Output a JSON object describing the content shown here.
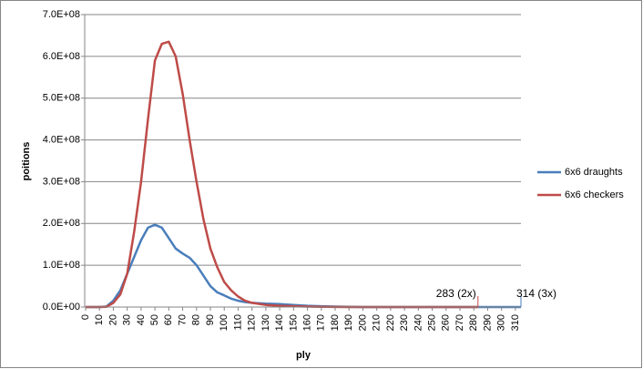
{
  "chart_data": {
    "type": "line",
    "xlabel": "ply",
    "ylabel": "poitions",
    "x": [
      0,
      5,
      10,
      15,
      20,
      25,
      30,
      35,
      40,
      45,
      50,
      55,
      60,
      65,
      70,
      75,
      80,
      85,
      90,
      95,
      100,
      105,
      110,
      115,
      120,
      130,
      140,
      150,
      160,
      170,
      180,
      190,
      200,
      283,
      314
    ],
    "series": [
      {
        "name": "6x6 draughts",
        "color": "#4a7ebb",
        "values": [
          0,
          0,
          0,
          1000000,
          15000000,
          40000000,
          80000000,
          120000000,
          160000000,
          190000000,
          197000000,
          190000000,
          165000000,
          140000000,
          128000000,
          118000000,
          100000000,
          75000000,
          50000000,
          35000000,
          28000000,
          20000000,
          15000000,
          12000000,
          10000000,
          8000000,
          7000000,
          5000000,
          3000000,
          2000000,
          1000000,
          500000,
          0,
          0,
          0
        ]
      },
      {
        "name": "6x6 checkers",
        "color": "#be4b48",
        "values": [
          0,
          0,
          0,
          500000,
          10000000,
          30000000,
          80000000,
          180000000,
          300000000,
          450000000,
          590000000,
          630000000,
          635000000,
          600000000,
          510000000,
          400000000,
          300000000,
          210000000,
          140000000,
          95000000,
          60000000,
          40000000,
          25000000,
          15000000,
          10000000,
          5000000,
          3000000,
          2000000,
          1000000,
          500000,
          200000,
          100000,
          0,
          0,
          null
        ]
      }
    ],
    "annotations": [
      {
        "text": "283 (2x)",
        "color": "#be4b48"
      },
      {
        "text": "314 (3x)",
        "color": "#4a7ebb"
      }
    ],
    "xlim": [
      0,
      314
    ],
    "xticks": [
      0,
      10,
      20,
      30,
      40,
      50,
      60,
      70,
      80,
      90,
      100,
      110,
      120,
      130,
      140,
      150,
      160,
      170,
      180,
      190,
      200,
      210,
      220,
      230,
      240,
      250,
      260,
      270,
      280,
      290,
      300,
      310
    ],
    "ylim": [
      0,
      700000000
    ],
    "yticks": [
      {
        "value": 0,
        "label": "0.0E+00"
      },
      {
        "value": 100000000,
        "label": "1.0E+08"
      },
      {
        "value": 200000000,
        "label": "2.0E+08"
      },
      {
        "value": 300000000,
        "label": "3.0E+08"
      },
      {
        "value": 400000000,
        "label": "4.0E+08"
      },
      {
        "value": 500000000,
        "label": "5.0E+08"
      },
      {
        "value": 600000000,
        "label": "6.0E+08"
      },
      {
        "value": 700000000,
        "label": "7.0E+08"
      }
    ],
    "grid": true,
    "legend": "right"
  }
}
